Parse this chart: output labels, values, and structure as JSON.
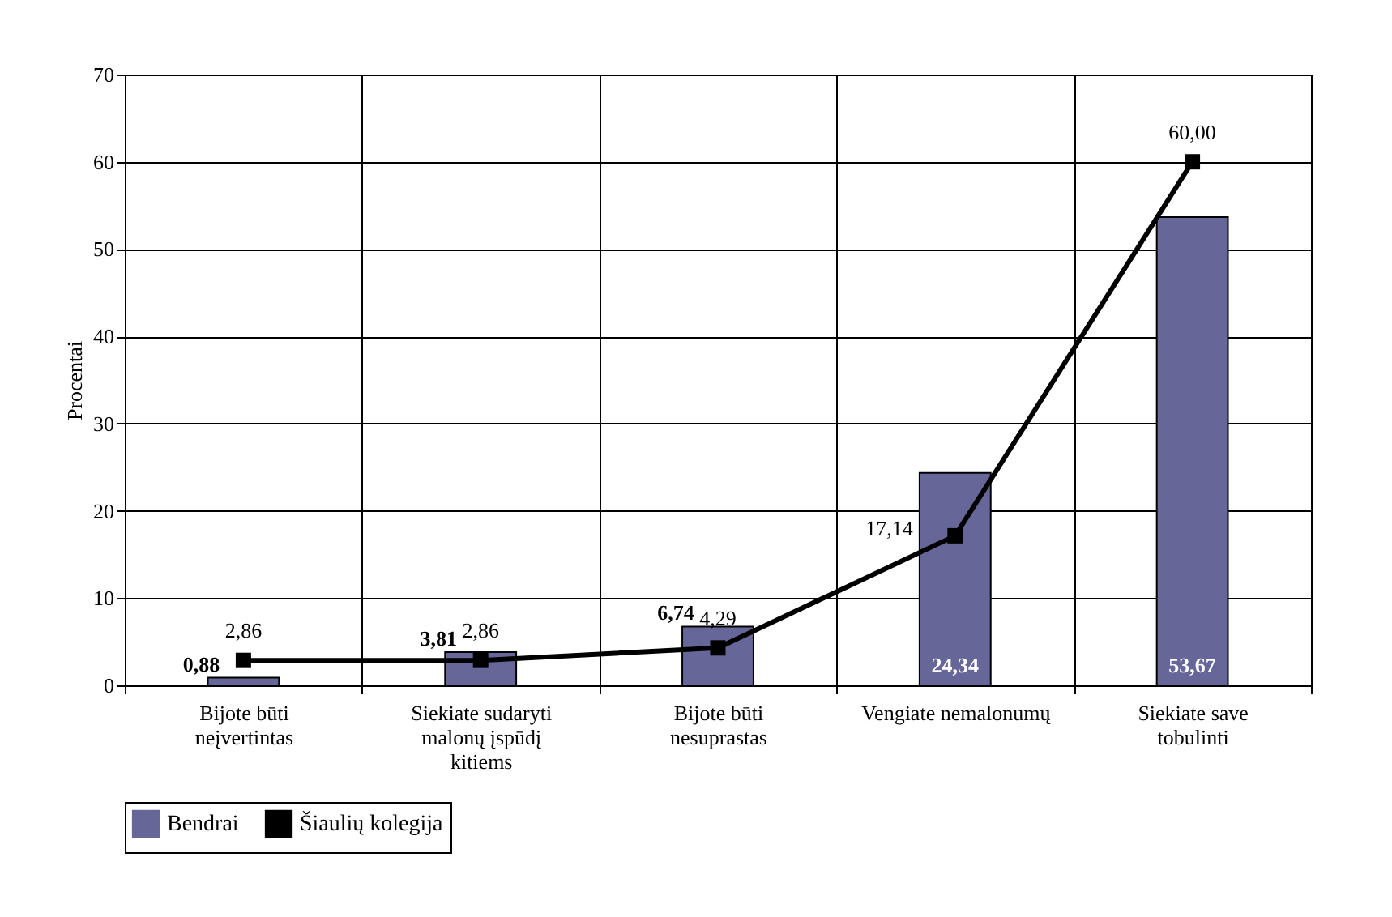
{
  "chart_data": {
    "type": "bar",
    "ylabel": "Procentai",
    "categories": [
      "Bijote būti neįvertintas",
      "Siekiate sudaryti malonų įspūdį kitiems",
      "Bijote būti nesuprastas",
      "Vengiate nemalonumų",
      "Siekiate save tobulinti"
    ],
    "series": [
      {
        "name": "Bendrai",
        "color": "#666699",
        "values": [
          0.88,
          3.81,
          6.74,
          24.34,
          53.67
        ],
        "value_labels": [
          "0,88",
          "3,81",
          "6,74",
          "24,34",
          "53,67"
        ]
      },
      {
        "name": "Šiaulių kolegija",
        "type": "line",
        "line_style": "solid",
        "color": "#000000",
        "values": [
          2.86,
          2.86,
          4.29,
          17.14,
          60.0
        ],
        "value_labels": [
          "2,86",
          "2,86",
          "4,29",
          "17,14",
          "60,00"
        ]
      }
    ],
    "ylim": [
      0,
      70
    ],
    "yticks": [
      0,
      10,
      20,
      30,
      40,
      50,
      60,
      70
    ],
    "grid": true,
    "legend": "bottom",
    "marker": "square"
  }
}
